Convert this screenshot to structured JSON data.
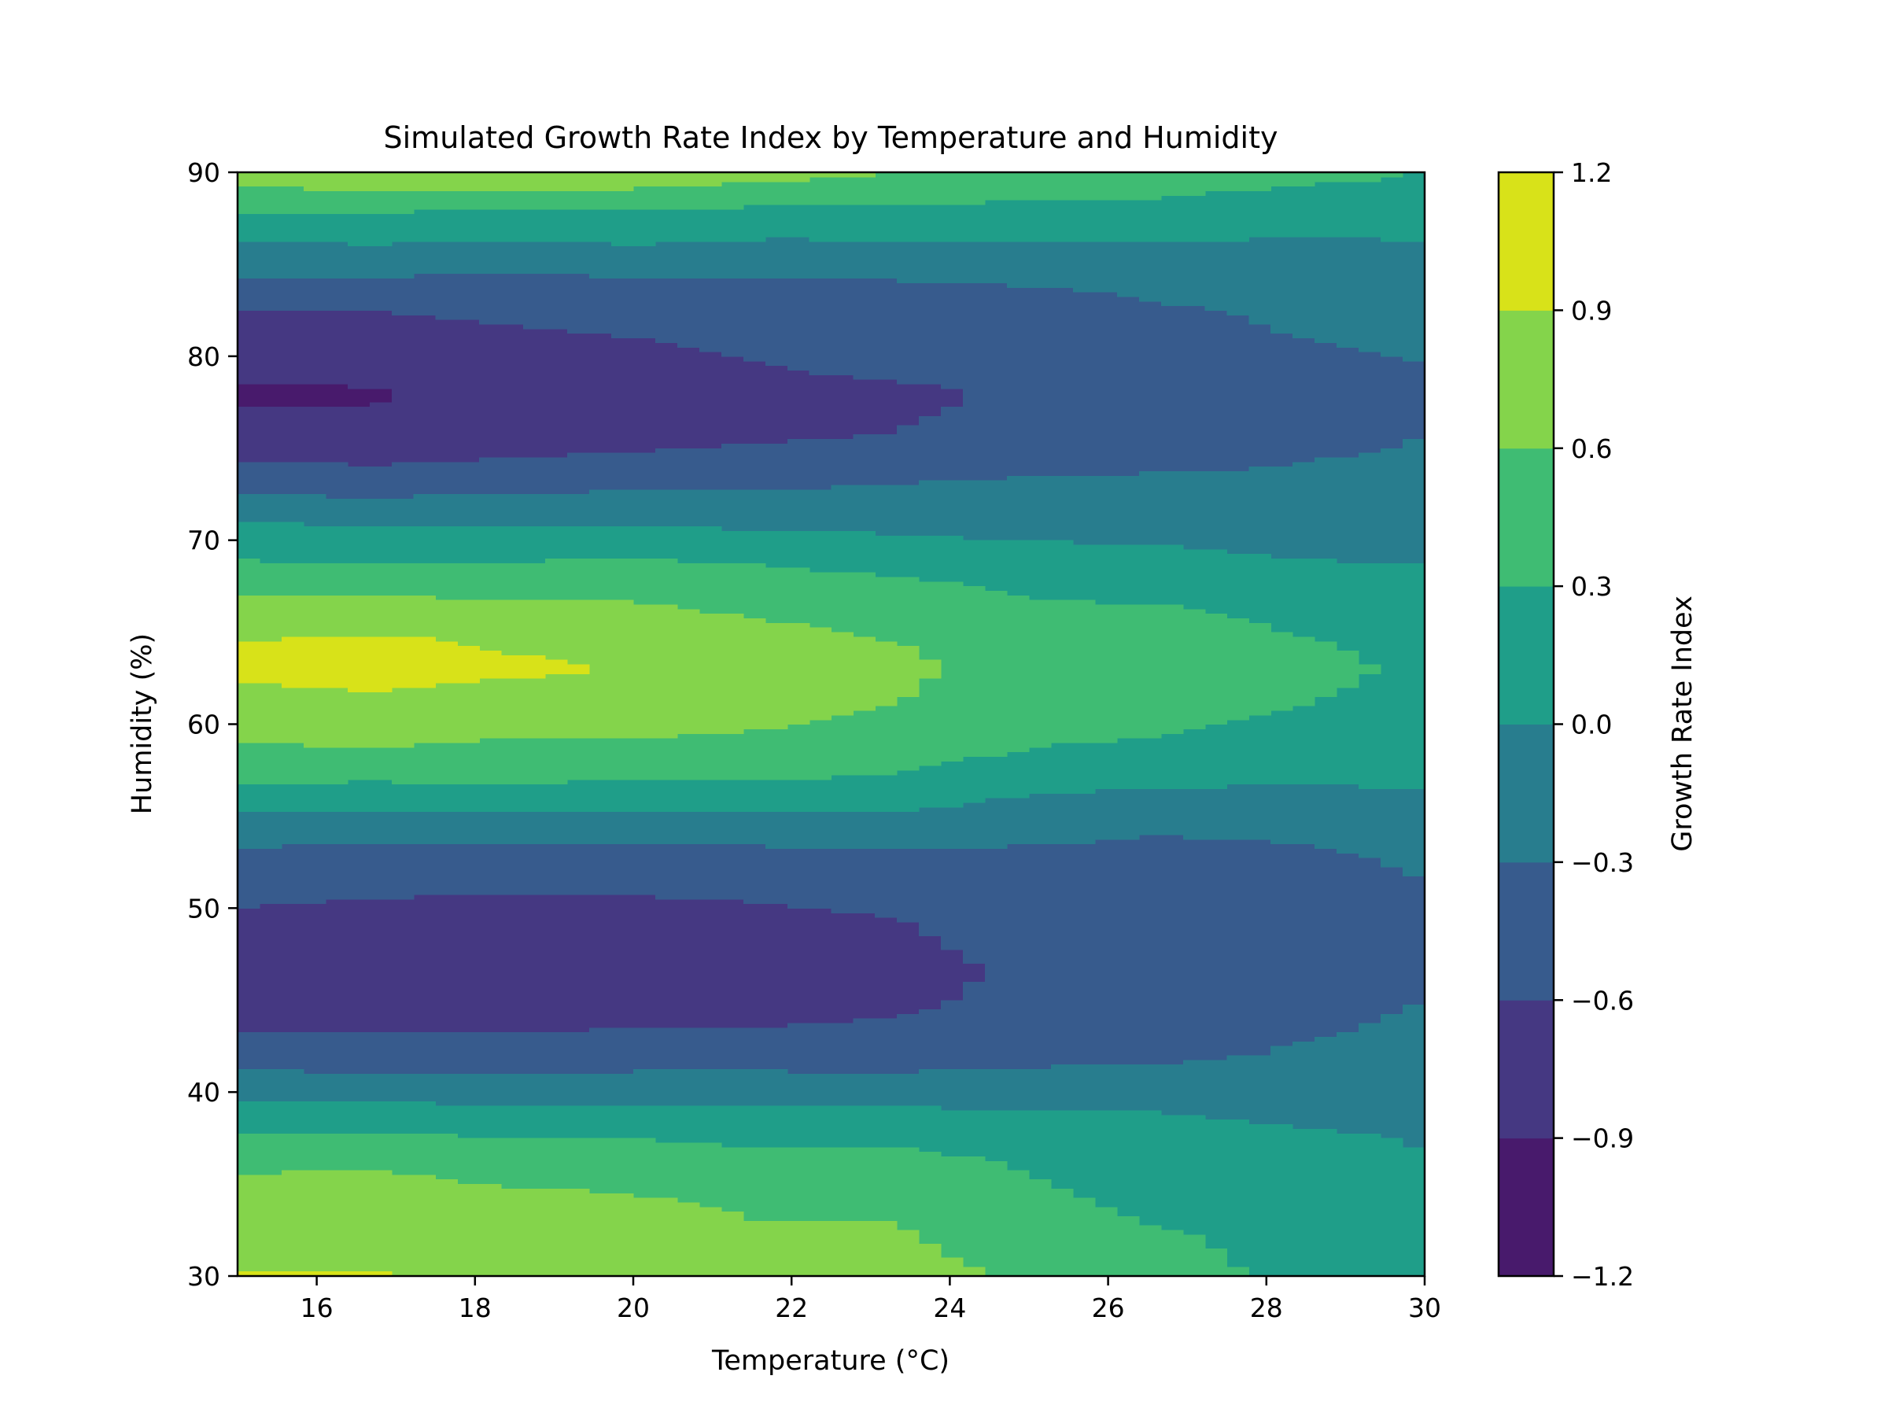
{
  "chart_data": {
    "type": "heatmap",
    "subtype": "filled-contour",
    "title": "Simulated Growth Rate Index by Temperature and Humidity",
    "xlabel": "Temperature (°C)",
    "ylabel": "Humidity (%)",
    "xlim": [
      15,
      30
    ],
    "ylim": [
      30,
      90
    ],
    "x_ticks": [
      "16",
      "18",
      "20",
      "22",
      "24",
      "26",
      "28",
      "30"
    ],
    "y_ticks": [
      "30",
      "40",
      "50",
      "60",
      "70",
      "80",
      "90"
    ],
    "colorbar": {
      "label": "Growth Rate Index",
      "levels": [
        -1.2,
        -0.9,
        -0.6,
        -0.3,
        0.0,
        0.3,
        0.6,
        0.9,
        1.2
      ],
      "tick_labels": [
        "−1.2",
        "−0.9",
        "−0.6",
        "−0.3",
        "0.0",
        "0.3",
        "0.6",
        "0.9",
        "1.2"
      ],
      "colors": [
        "#481a6c",
        "#453882",
        "#375b8d",
        "#287d8e",
        "#1f9e89",
        "#3fbc73",
        "#84d44b",
        "#d8e219"
      ]
    },
    "grid": false,
    "x": [
      15,
      16.67,
      18.33,
      20,
      21.67,
      23.33,
      25,
      26.67,
      28.33,
      30
    ],
    "y": [
      30,
      31.5,
      33,
      34.5,
      36,
      37.5,
      39,
      40.5,
      42,
      43.5,
      45,
      46.5,
      48,
      49.5,
      51,
      52.5,
      54,
      55.5,
      57,
      58.5,
      60,
      61.5,
      63,
      64.5,
      66,
      67.5,
      69,
      70.5,
      72,
      73.5,
      75,
      76.5,
      78,
      79.5,
      81,
      82.5,
      84,
      85.5,
      87,
      88.5,
      90
    ],
    "z": [
      [
        0.92,
        0.92,
        0.87,
        0.91,
        0.8,
        0.72,
        0.55,
        0.45,
        0.22,
        0.12
      ],
      [
        0.82,
        0.82,
        0.78,
        0.8,
        0.68,
        0.65,
        0.48,
        0.38,
        0.2,
        0.1
      ],
      [
        0.75,
        0.78,
        0.7,
        0.68,
        0.6,
        0.6,
        0.42,
        0.28,
        0.18,
        0.1
      ],
      [
        0.66,
        0.7,
        0.62,
        0.6,
        0.52,
        0.5,
        0.35,
        0.2,
        0.12,
        0.06
      ],
      [
        0.57,
        0.59,
        0.52,
        0.5,
        0.42,
        0.42,
        0.28,
        0.14,
        0.07,
        0.02
      ],
      [
        0.35,
        0.36,
        0.3,
        0.3,
        0.23,
        0.24,
        0.15,
        0.1,
        0.05,
        -0.02
      ],
      [
        0.1,
        0.1,
        0.06,
        0.06,
        0.03,
        0.03,
        0.0,
        -0.01,
        -0.07,
        -0.1
      ],
      [
        -0.2,
        -0.23,
        -0.25,
        -0.21,
        -0.22,
        -0.22,
        -0.2,
        -0.2,
        -0.2,
        -0.2
      ],
      [
        -0.4,
        -0.45,
        -0.45,
        -0.42,
        -0.41,
        -0.42,
        -0.38,
        -0.34,
        -0.28,
        -0.24
      ],
      [
        -0.62,
        -0.63,
        -0.63,
        -0.61,
        -0.6,
        -0.57,
        -0.5,
        -0.43,
        -0.33,
        -0.27
      ],
      [
        -0.7,
        -0.71,
        -0.72,
        -0.7,
        -0.68,
        -0.64,
        -0.55,
        -0.45,
        -0.38,
        -0.3
      ],
      [
        -0.75,
        -0.76,
        -0.77,
        -0.74,
        -0.7,
        -0.67,
        -0.56,
        -0.52,
        -0.42,
        -0.32
      ],
      [
        -0.7,
        -0.72,
        -0.73,
        -0.7,
        -0.69,
        -0.63,
        -0.55,
        -0.52,
        -0.45,
        -0.33
      ],
      [
        -0.63,
        -0.65,
        -0.66,
        -0.64,
        -0.62,
        -0.6,
        -0.53,
        -0.5,
        -0.45,
        -0.33
      ],
      [
        -0.55,
        -0.58,
        -0.59,
        -0.59,
        -0.58,
        -0.55,
        -0.47,
        -0.45,
        -0.4,
        -0.31
      ],
      [
        -0.42,
        -0.46,
        -0.45,
        -0.47,
        -0.44,
        -0.4,
        -0.37,
        -0.36,
        -0.34,
        -0.28
      ],
      [
        -0.2,
        -0.22,
        -0.2,
        -0.24,
        -0.2,
        -0.17,
        -0.26,
        -0.3,
        -0.28,
        -0.25
      ],
      [
        0.05,
        0.04,
        0.05,
        0.02,
        0.06,
        0.05,
        -0.08,
        -0.12,
        -0.13,
        -0.1
      ],
      [
        0.35,
        0.32,
        0.34,
        0.31,
        0.32,
        0.26,
        0.1,
        0.05,
        0.03,
        0.05
      ],
      [
        0.55,
        0.58,
        0.55,
        0.55,
        0.5,
        0.42,
        0.28,
        0.25,
        0.14,
        0.1
      ],
      [
        0.72,
        0.7,
        0.66,
        0.66,
        0.62,
        0.55,
        0.38,
        0.34,
        0.25,
        0.15
      ],
      [
        0.82,
        0.88,
        0.82,
        0.79,
        0.72,
        0.61,
        0.47,
        0.4,
        0.33,
        0.21
      ],
      [
        0.98,
        0.98,
        0.95,
        0.88,
        0.77,
        0.65,
        0.5,
        0.45,
        0.4,
        0.25
      ],
      [
        0.89,
        0.96,
        0.87,
        0.82,
        0.7,
        0.6,
        0.46,
        0.43,
        0.32,
        0.22
      ],
      [
        0.68,
        0.72,
        0.66,
        0.66,
        0.57,
        0.5,
        0.38,
        0.35,
        0.25,
        0.17
      ],
      [
        0.55,
        0.55,
        0.52,
        0.52,
        0.47,
        0.38,
        0.25,
        0.18,
        0.12,
        0.08
      ],
      [
        0.28,
        0.25,
        0.26,
        0.31,
        0.24,
        0.15,
        0.08,
        0.05,
        0.0,
        -0.03
      ],
      [
        0.1,
        0.05,
        0.05,
        0.05,
        0.0,
        -0.02,
        -0.05,
        -0.05,
        -0.1,
        -0.12
      ],
      [
        -0.2,
        -0.25,
        -0.22,
        -0.2,
        -0.2,
        -0.18,
        -0.18,
        -0.18,
        -0.18,
        -0.15
      ],
      [
        -0.45,
        -0.5,
        -0.45,
        -0.42,
        -0.4,
        -0.35,
        -0.3,
        -0.28,
        -0.25,
        -0.22
      ],
      [
        -0.7,
        -0.76,
        -0.68,
        -0.62,
        -0.58,
        -0.57,
        -0.5,
        -0.5,
        -0.36,
        -0.28
      ],
      [
        -0.85,
        -0.88,
        -0.8,
        -0.74,
        -0.68,
        -0.62,
        -0.52,
        -0.52,
        -0.46,
        -0.32
      ],
      [
        -0.95,
        -0.92,
        -0.85,
        -0.78,
        -0.72,
        -0.67,
        -0.55,
        -0.5,
        -0.42,
        -0.34
      ],
      [
        -0.82,
        -0.82,
        -0.75,
        -0.7,
        -0.6,
        -0.52,
        -0.45,
        -0.4,
        -0.36,
        -0.3
      ],
      [
        -0.7,
        -0.68,
        -0.64,
        -0.6,
        -0.52,
        -0.45,
        -0.44,
        -0.35,
        -0.3,
        -0.25
      ],
      [
        -0.61,
        -0.6,
        -0.56,
        -0.52,
        -0.5,
        -0.45,
        -0.42,
        -0.32,
        -0.28,
        -0.24
      ],
      [
        -0.35,
        -0.35,
        -0.4,
        -0.35,
        -0.32,
        -0.32,
        -0.28,
        -0.25,
        -0.2,
        -0.15
      ],
      [
        -0.1,
        -0.08,
        -0.12,
        -0.08,
        -0.12,
        -0.12,
        -0.08,
        -0.07,
        -0.1,
        -0.05
      ],
      [
        0.1,
        0.12,
        0.08,
        0.12,
        0.08,
        0.1,
        0.1,
        0.08,
        0.05,
        0.05
      ],
      [
        0.45,
        0.45,
        0.4,
        0.42,
        0.36,
        0.36,
        0.3,
        0.28,
        0.2,
        0.16
      ],
      [
        0.8,
        0.82,
        0.91,
        0.86,
        0.72,
        0.6,
        0.52,
        0.5,
        0.4,
        0.3
      ]
    ]
  }
}
